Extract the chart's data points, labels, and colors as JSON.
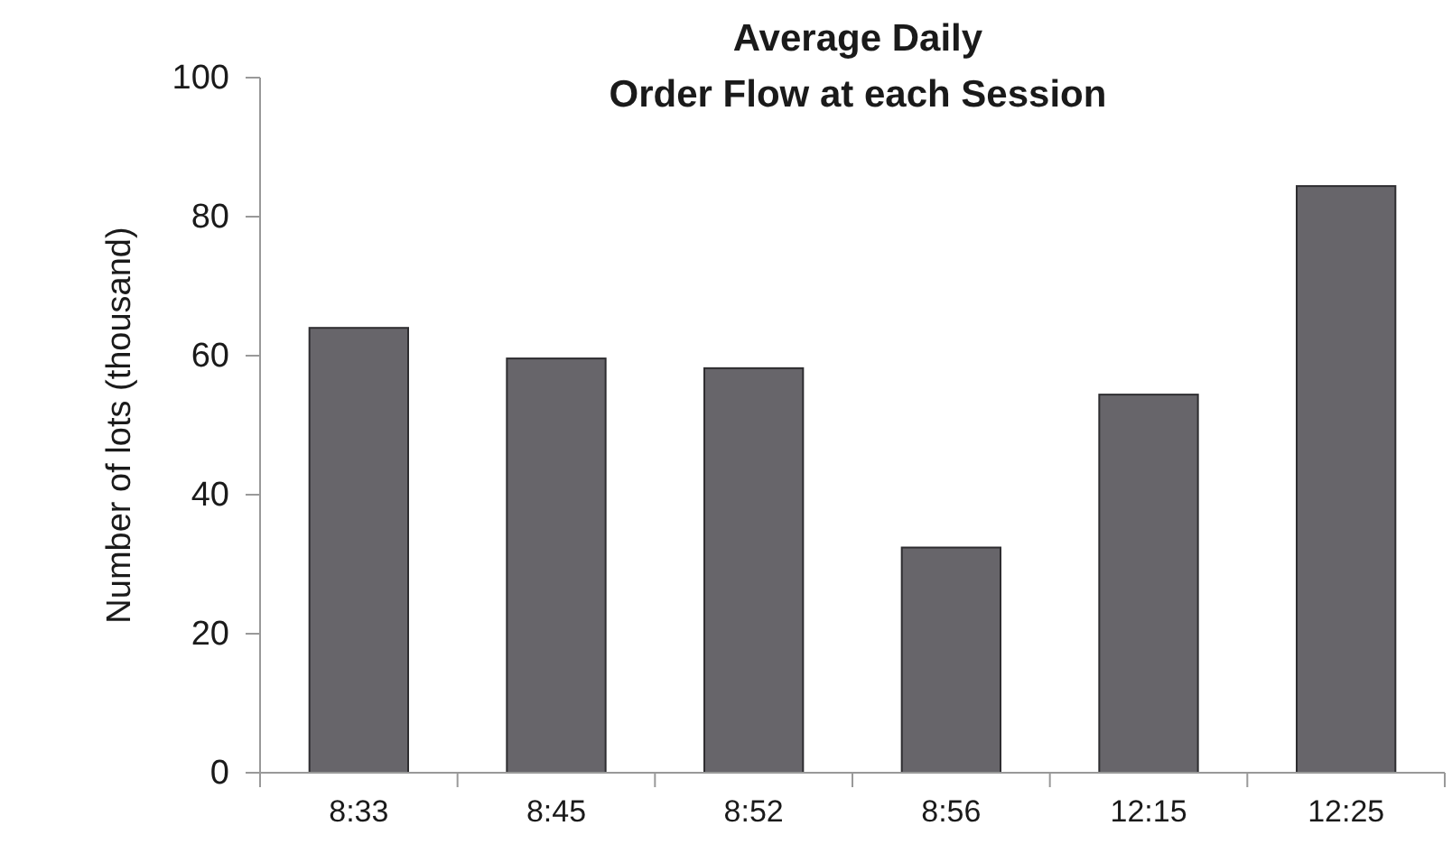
{
  "chart_data": {
    "type": "bar",
    "title": "Average Daily\nOrder Flow at each Session",
    "ylabel": "Number of lots (thousand)",
    "categories": [
      "8:33",
      "8:45",
      "8:52",
      "8:56",
      "12:15",
      "12:25"
    ],
    "values": [
      64.0,
      59.6,
      58.2,
      32.4,
      54.4,
      84.4
    ],
    "color": "#67656a",
    "ylim": [
      0,
      100
    ],
    "yticks": [
      0,
      20,
      40,
      60,
      80,
      100
    ],
    "grid": false
  }
}
